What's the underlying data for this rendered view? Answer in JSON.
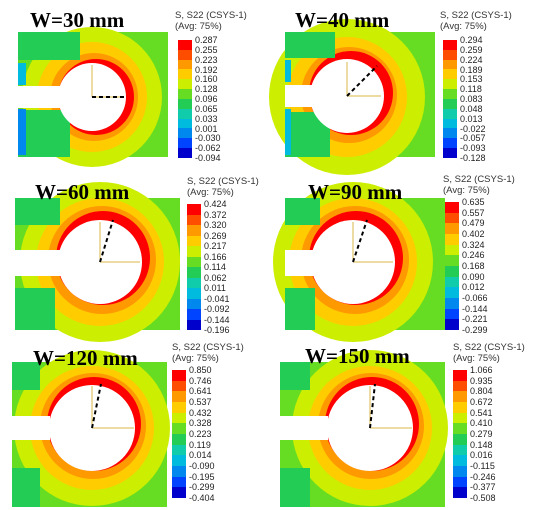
{
  "contour_colors": [
    "#ff0000",
    "#ff4d00",
    "#ff9900",
    "#ffcc00",
    "#ccee00",
    "#66dd22",
    "#22cc55",
    "#11ccaa",
    "#00bbdd",
    "#0088ee",
    "#0044ff",
    "#0000cc"
  ],
  "panels": [
    {
      "title": "W=30 mm",
      "legend_title": "S, S22 (CSYS-1)",
      "legend_avg": "(Avg: 75%)",
      "values": [
        "0.287",
        "0.255",
        "0.223",
        "0.192",
        "0.160",
        "0.128",
        "0.096",
        "0.065",
        "0.033",
        "0.001",
        "-0.030",
        "-0.062",
        "-0.094"
      ]
    },
    {
      "title": "W=40 mm",
      "legend_title": "S, S22 (CSYS-1)",
      "legend_avg": "(Avg: 75%)",
      "values": [
        "0.294",
        "0.259",
        "0.224",
        "0.189",
        "0.153",
        "0.118",
        "0.083",
        "0.048",
        "0.013",
        "-0.022",
        "-0.057",
        "-0.093",
        "-0.128"
      ]
    },
    {
      "title": "W=60 mm",
      "legend_title": "S, S22 (CSYS-1)",
      "legend_avg": "(Avg: 75%)",
      "values": [
        "0.424",
        "0.372",
        "0.320",
        "0.269",
        "0.217",
        "0.166",
        "0.114",
        "0.062",
        "0.011",
        "-0.041",
        "-0.092",
        "-0.144",
        "-0.196"
      ]
    },
    {
      "title": "W=90 mm",
      "legend_title": "S, S22 (CSYS-1)",
      "legend_avg": "(Avg: 75%)",
      "values": [
        "0.635",
        "0.557",
        "0.479",
        "0.402",
        "0.324",
        "0.246",
        "0.168",
        "0.090",
        "0.012",
        "-0.066",
        "-0.144",
        "-0.221",
        "-0.299"
      ]
    },
    {
      "title": "W=120 mm",
      "legend_title": "S, S22 (CSYS-1)",
      "legend_avg": "(Avg: 75%)",
      "values": [
        "0.850",
        "0.746",
        "0.641",
        "0.537",
        "0.432",
        "0.328",
        "0.223",
        "0.119",
        "0.014",
        "-0.090",
        "-0.195",
        "-0.299",
        "-0.404"
      ]
    },
    {
      "title": "W=150 mm",
      "legend_title": "S, S22 (CSYS-1)",
      "legend_avg": "(Avg: 75%)",
      "values": [
        "1.066",
        "0.935",
        "0.804",
        "0.672",
        "0.541",
        "0.410",
        "0.279",
        "0.148",
        "0.016",
        "-0.115",
        "-0.246",
        "-0.377",
        "-0.508"
      ]
    }
  ]
}
